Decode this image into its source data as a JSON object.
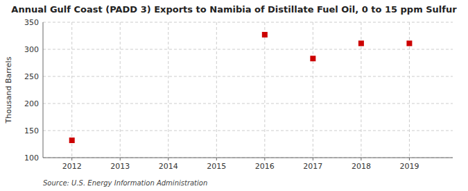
{
  "chart_data": {
    "type": "scatter",
    "title": "Annual Gulf Coast (PADD 3) Exports to Namibia of Distillate Fuel Oil, 0 to 15 ppm Sulfur",
    "y_label": "Thousand Barrels",
    "annotations": [
      "Source: U.S. Energy Information Administration"
    ],
    "x": [
      2012,
      2016,
      2017,
      2018,
      2019
    ],
    "values": [
      132,
      327,
      283,
      311,
      311
    ],
    "xlim": [
      2011.4,
      2019.9
    ],
    "ylim": [
      100,
      350
    ],
    "xticks": [
      2012,
      2013,
      2014,
      2015,
      2016,
      2017,
      2018,
      2019
    ],
    "yticks": [
      100,
      150,
      200,
      250,
      300,
      350
    ],
    "color": "#cc0000",
    "marker": "square",
    "grid": true
  }
}
